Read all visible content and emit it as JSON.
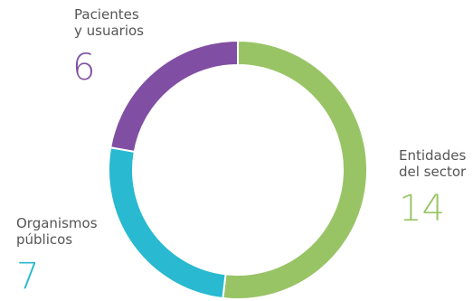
{
  "chart_data": {
    "type": "pie",
    "donut": true,
    "categories": [
      "Entidades\ndel sector",
      "Organismos\npúblicos",
      "Pacientes\ny usuarios"
    ],
    "values": [
      14,
      7,
      6
    ],
    "colors": [
      "#99c466",
      "#29b9d0",
      "#804fa3"
    ],
    "legend": "none",
    "title": ""
  }
}
